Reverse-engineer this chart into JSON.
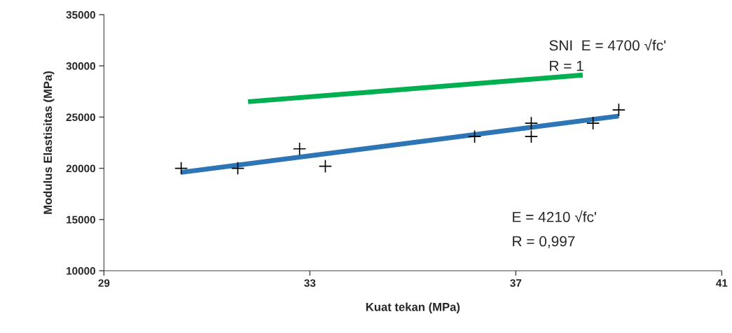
{
  "chart_data": {
    "type": "scatter",
    "xlabel": "Kuat tekan (MPa)",
    "ylabel": "Modulus Elastisitas (MPa)",
    "xlim": [
      29,
      41
    ],
    "xticks": [
      29,
      33,
      37,
      41
    ],
    "ylim": [
      10000,
      35000
    ],
    "yticks": [
      10000,
      15000,
      20000,
      25000,
      30000,
      35000
    ],
    "grid": false,
    "legend": false,
    "series": [
      {
        "color": "#000000",
        "marker": "cross",
        "x": [
          30.5,
          31.6,
          32.8,
          33.3,
          36.2,
          37.3,
          37.3,
          38.5,
          39.0
        ],
        "values": [
          20000,
          20000,
          21900,
          20200,
          23100,
          24400,
          23100,
          24400,
          25700
        ]
      },
      {
        "type": "line",
        "color": "#2e75b6",
        "marker": "none",
        "line_style": "solid",
        "x": [
          30.5,
          39.0
        ],
        "values": [
          19600,
          25100
        ]
      },
      {
        "type": "line",
        "color": "#00b050",
        "marker": "none",
        "line_style": "solid",
        "x": [
          31.8,
          38.3
        ],
        "values": [
          26500,
          29100
        ]
      }
    ],
    "annotations": [
      "SNI  E = 4700 √fc'",
      "R = 1",
      "E = 4210 √fc'",
      "R = 0,997"
    ]
  }
}
